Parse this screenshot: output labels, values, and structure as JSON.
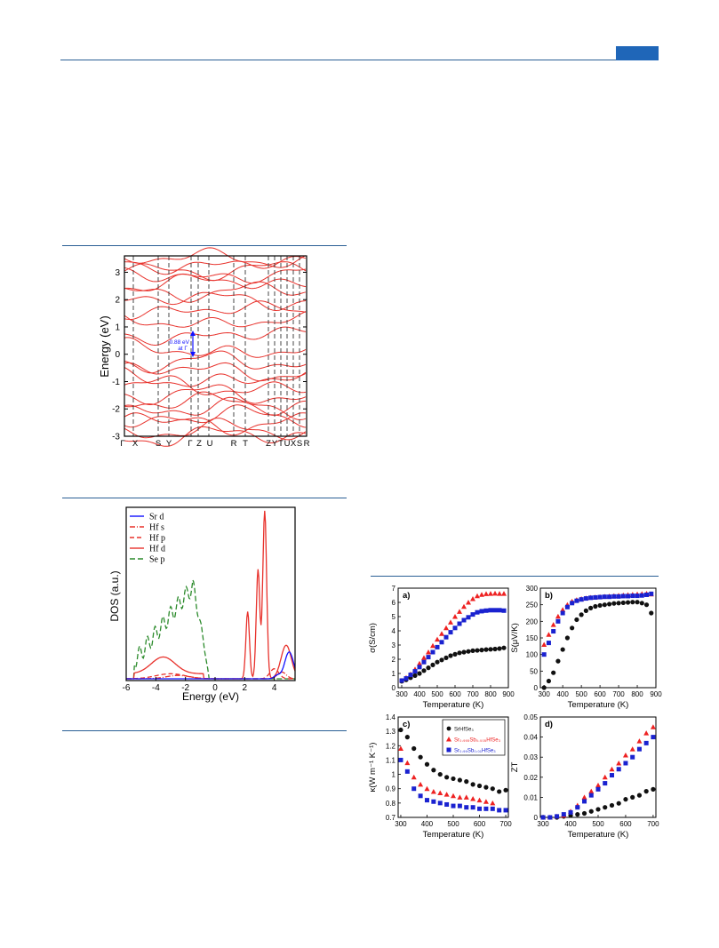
{
  "colors": {
    "rule": "#2a5f95",
    "header_block": "#1f66b8",
    "band": "#e8322c",
    "sr_d": "#1010ff",
    "hf_d": "#e8322c",
    "se_p": "#2a8a2a",
    "black": "#111111",
    "red": "#ee2222",
    "blue": "#1a22d0"
  },
  "band_structure": {
    "ylabel": "Energy (eV)",
    "yticks": [
      "3",
      "2",
      "1",
      "0",
      "-1",
      "-2",
      "-3"
    ],
    "kpoints": [
      "Γ",
      "X",
      "S",
      "Y",
      "Γ",
      "Z",
      "U",
      "R",
      "T",
      "Z",
      "Y",
      "T",
      "U",
      "X",
      "S",
      "R"
    ],
    "gap_label_1": "0.88 eV",
    "gap_label_2": "at Γ"
  },
  "dos": {
    "ylabel": "DOS (a.u.)",
    "xlabel": "Energy (eV)",
    "xticks": [
      "-6",
      "-4",
      "-2",
      "0",
      "2",
      "4"
    ],
    "legend": [
      "Sr d",
      "Hf s",
      "Hf p",
      "Hf d",
      "Se p"
    ]
  },
  "transport": {
    "panel_a": {
      "tag": "a)",
      "ylabel": "σ(S/cm)",
      "xlabel": "Temperature (K)",
      "yticks": [
        "0",
        "1",
        "2",
        "3",
        "4",
        "5",
        "6",
        "7"
      ],
      "xticks": [
        "300",
        "400",
        "500",
        "600",
        "700",
        "800",
        "900"
      ]
    },
    "panel_b": {
      "tag": "b)",
      "ylabel": "S(μV/K)",
      "xlabel": "Temperature (K)",
      "yticks": [
        "0",
        "50",
        "100",
        "150",
        "200",
        "250",
        "300"
      ],
      "xticks": [
        "300",
        "400",
        "500",
        "600",
        "700",
        "800",
        "900"
      ]
    },
    "panel_c": {
      "tag": "c)",
      "ylabel": "κ(W m⁻¹ K⁻¹)",
      "xlabel": "Temperature (K)",
      "yticks": [
        "0.7",
        "0.8",
        "0.9",
        "1",
        "1.1",
        "1.2",
        "1.3",
        "1.4"
      ],
      "xticks": [
        "300",
        "400",
        "500",
        "600",
        "700"
      ],
      "legend": [
        "SrHfSe₃",
        "Sr₀.₉₉₅Sb₀.₀₀₅HfSe₃",
        "Sr₀.₉₉Sb₀.₀₁HfSe₃"
      ]
    },
    "panel_d": {
      "tag": "d)",
      "ylabel": "ZT",
      "xlabel": "Temperature (K)",
      "yticks": [
        "0",
        "0.01",
        "0.02",
        "0.03",
        "0.04",
        "0.05"
      ],
      "xticks": [
        "300",
        "400",
        "500",
        "600",
        "700"
      ]
    }
  },
  "chart_data": [
    {
      "type": "scatter",
      "title": "",
      "xlabel": "Temperature (K)",
      "ylabel": "σ(S/cm)",
      "xlim": [
        280,
        900
      ],
      "ylim": [
        0,
        7
      ],
      "series": [
        {
          "x": [
            300,
            325,
            350,
            375,
            400,
            425,
            450,
            475,
            500,
            525,
            550,
            575,
            600,
            625,
            650,
            675,
            700,
            725,
            750,
            775,
            800,
            825,
            850,
            875
          ],
          "values": [
            0.45,
            0.55,
            0.7,
            0.85,
            1.0,
            1.2,
            1.4,
            1.6,
            1.8,
            1.95,
            2.1,
            2.25,
            2.35,
            2.45,
            2.5,
            2.55,
            2.6,
            2.62,
            2.65,
            2.68,
            2.7,
            2.72,
            2.75,
            2.8
          ]
        },
        {
          "x": [
            300,
            325,
            350,
            375,
            400,
            425,
            450,
            475,
            500,
            525,
            550,
            575,
            600,
            625,
            650,
            675,
            700,
            725,
            750,
            775,
            800,
            825,
            850,
            875
          ],
          "values": [
            0.5,
            0.7,
            0.95,
            1.3,
            1.7,
            2.1,
            2.5,
            2.95,
            3.4,
            3.8,
            4.2,
            4.6,
            5.0,
            5.35,
            5.7,
            6.0,
            6.25,
            6.45,
            6.55,
            6.6,
            6.62,
            6.63,
            6.62,
            6.62
          ]
        },
        {
          "x": [
            300,
            325,
            350,
            375,
            400,
            425,
            450,
            475,
            500,
            525,
            550,
            575,
            600,
            625,
            650,
            675,
            700,
            725,
            750,
            775,
            800,
            825,
            850,
            875
          ],
          "values": [
            0.5,
            0.65,
            0.9,
            1.15,
            1.45,
            1.8,
            2.15,
            2.5,
            2.85,
            3.2,
            3.55,
            3.9,
            4.2,
            4.5,
            4.75,
            4.95,
            5.15,
            5.3,
            5.38,
            5.42,
            5.45,
            5.45,
            5.45,
            5.42
          ]
        }
      ]
    },
    {
      "type": "scatter",
      "title": "",
      "xlabel": "Temperature (K)",
      "ylabel": "S(μV/K)",
      "xlim": [
        280,
        900
      ],
      "ylim": [
        0,
        300
      ],
      "series": [
        {
          "x": [
            300,
            325,
            350,
            375,
            400,
            425,
            450,
            475,
            500,
            525,
            550,
            575,
            600,
            625,
            650,
            675,
            700,
            725,
            750,
            775,
            800,
            825,
            850,
            875
          ],
          "values": [
            0,
            20,
            45,
            80,
            115,
            150,
            180,
            205,
            220,
            232,
            240,
            245,
            248,
            250,
            252,
            254,
            255,
            256,
            257,
            258,
            258,
            255,
            250,
            225
          ]
        },
        {
          "x": [
            300,
            325,
            350,
            375,
            400,
            425,
            450,
            475,
            500,
            525,
            550,
            575,
            600,
            625,
            650,
            675,
            700,
            725,
            750,
            775,
            800,
            825,
            850,
            875
          ],
          "values": [
            130,
            160,
            190,
            215,
            235,
            250,
            260,
            265,
            268,
            270,
            272,
            273,
            274,
            275,
            276,
            277,
            278,
            279,
            280,
            281,
            282,
            283,
            284,
            282
          ]
        },
        {
          "x": [
            300,
            325,
            350,
            375,
            400,
            425,
            450,
            475,
            500,
            525,
            550,
            575,
            600,
            625,
            650,
            675,
            700,
            725,
            750,
            775,
            800,
            825,
            850,
            875
          ],
          "values": [
            100,
            135,
            170,
            200,
            225,
            243,
            255,
            262,
            266,
            269,
            271,
            272,
            273,
            274,
            274,
            275,
            275,
            276,
            276,
            277,
            277,
            278,
            280,
            283
          ]
        }
      ]
    },
    {
      "type": "scatter",
      "title": "",
      "xlabel": "Temperature (K)",
      "ylabel": "κ(W m⁻¹ K⁻¹)",
      "xlim": [
        290,
        710
      ],
      "ylim": [
        0.7,
        1.4
      ],
      "series": [
        {
          "name": "SrHfSe₃",
          "x": [
            300,
            325,
            350,
            375,
            400,
            425,
            450,
            475,
            500,
            525,
            550,
            575,
            600,
            625,
            650,
            675,
            700
          ],
          "values": [
            1.31,
            1.26,
            1.18,
            1.12,
            1.07,
            1.03,
            1.0,
            0.98,
            0.97,
            0.96,
            0.95,
            0.93,
            0.92,
            0.91,
            0.9,
            0.88,
            0.89
          ]
        },
        {
          "name": "Sr₀.₉₉₅Sb₀.₀₀₅HfSe₃",
          "x": [
            300,
            325,
            350,
            375,
            400,
            425,
            450,
            475,
            500,
            525,
            550,
            575,
            600,
            625,
            650
          ],
          "values": [
            1.18,
            1.08,
            0.98,
            0.93,
            0.9,
            0.88,
            0.87,
            0.86,
            0.85,
            0.84,
            0.84,
            0.83,
            0.82,
            0.81,
            0.8
          ]
        },
        {
          "name": "Sr₀.₉₉Sb₀.₀₁HfSe₃",
          "x": [
            300,
            325,
            350,
            375,
            400,
            425,
            450,
            475,
            500,
            525,
            550,
            575,
            600,
            625,
            650,
            675,
            700
          ],
          "values": [
            1.1,
            1.02,
            0.9,
            0.85,
            0.82,
            0.81,
            0.8,
            0.79,
            0.78,
            0.78,
            0.77,
            0.77,
            0.76,
            0.76,
            0.76,
            0.75,
            0.75
          ]
        }
      ]
    },
    {
      "type": "scatter",
      "title": "",
      "xlabel": "Temperature (K)",
      "ylabel": "ZT",
      "xlim": [
        290,
        710
      ],
      "ylim": [
        0,
        0.05
      ],
      "series": [
        {
          "x": [
            300,
            325,
            350,
            375,
            400,
            425,
            450,
            475,
            500,
            525,
            550,
            575,
            600,
            625,
            650,
            675,
            700
          ],
          "values": [
            0,
            0,
            0,
            0.0005,
            0.001,
            0.0015,
            0.002,
            0.003,
            0.004,
            0.005,
            0.006,
            0.007,
            0.009,
            0.01,
            0.011,
            0.013,
            0.014
          ]
        },
        {
          "x": [
            300,
            325,
            350,
            375,
            400,
            425,
            450,
            475,
            500,
            525,
            550,
            575,
            600,
            625,
            650,
            675,
            700
          ],
          "values": [
            0,
            0,
            0.0005,
            0.001,
            0.003,
            0.006,
            0.01,
            0.013,
            0.016,
            0.02,
            0.024,
            0.027,
            0.031,
            0.034,
            0.038,
            0.042,
            0.045
          ]
        },
        {
          "x": [
            300,
            325,
            350,
            375,
            400,
            425,
            450,
            475,
            500,
            525,
            550,
            575,
            600,
            625,
            650,
            675,
            700
          ],
          "values": [
            0,
            0,
            0.0005,
            0.0015,
            0.0025,
            0.005,
            0.008,
            0.011,
            0.014,
            0.017,
            0.021,
            0.024,
            0.027,
            0.03,
            0.034,
            0.037,
            0.04
          ]
        }
      ]
    }
  ]
}
